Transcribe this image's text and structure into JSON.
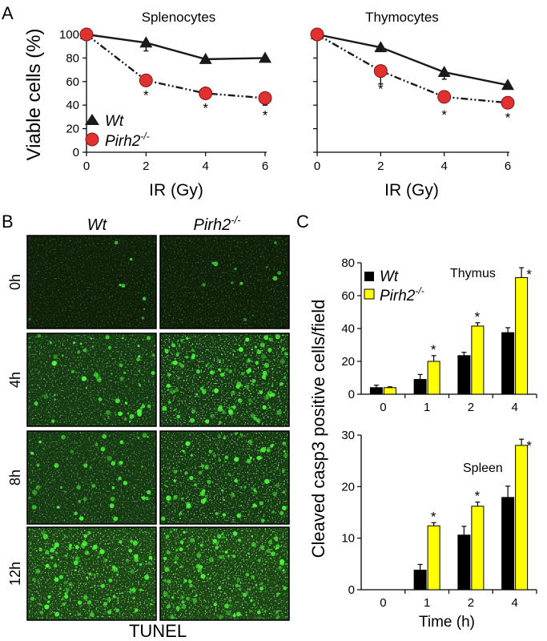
{
  "panel_letters": [
    "A",
    "B",
    "C"
  ],
  "panel_a": {
    "ylabel": "Viable cells (%)",
    "legend": {
      "wt": "Wt",
      "ko": "Pirh2",
      "ko_sup": "-/-"
    },
    "charts": [
      {
        "title": "Splenocytes",
        "xlabel": "IR (Gy)"
      },
      {
        "title": "Thymocytes",
        "xlabel": "IR (Gy)"
      }
    ]
  },
  "panel_b": {
    "col_labels": [
      "Wt",
      "Pirh2"
    ],
    "col_sup": "-/-",
    "row_labels": [
      "0h",
      "4h",
      "8h",
      "12h"
    ],
    "caption": "TUNEL"
  },
  "panel_c": {
    "ylabel": "Cleaved casp3 positive cells/field",
    "xlabel": "Time (h)",
    "legend": {
      "wt": "Wt",
      "ko": "Pirh2",
      "ko_sup": "-/-"
    },
    "charts": [
      {
        "title": "Thymus"
      },
      {
        "title": "Spleen"
      }
    ]
  },
  "chart_data": [
    {
      "type": "line",
      "title": "Splenocytes",
      "xlabel": "IR (Gy)",
      "ylabel": "Viable cells (%)",
      "x": [
        0,
        2,
        4,
        6
      ],
      "xlim": [
        0,
        6
      ],
      "ylim": [
        0,
        100
      ],
      "xticks": [
        "0",
        "2",
        "4",
        "6"
      ],
      "yticks": [
        "0",
        "20",
        "40",
        "60",
        "80",
        "100"
      ],
      "series": [
        {
          "name": "Wt",
          "values": [
            100,
            93,
            79,
            80
          ],
          "errors": [
            0,
            7,
            0,
            0
          ],
          "marker": "triangle",
          "color": "#1a1a1a",
          "style": "solid"
        },
        {
          "name": "Pirh2-/-",
          "values": [
            100,
            61,
            50,
            46
          ],
          "errors": [
            0,
            0,
            0,
            6
          ],
          "marker": "circle",
          "color": "#e03030",
          "style": "dashdot"
        }
      ],
      "annotations": [
        "*",
        "*",
        "*"
      ],
      "grid": false,
      "legend_position": "bottom-left"
    },
    {
      "type": "line",
      "title": "Thymocytes",
      "xlabel": "IR (Gy)",
      "x": [
        0,
        2,
        4,
        6
      ],
      "xlim": [
        0,
        6
      ],
      "ylim": [
        0,
        100
      ],
      "xticks": [
        "0",
        "2",
        "4",
        "6"
      ],
      "series": [
        {
          "name": "Wt",
          "values": [
            100,
            89,
            68,
            57
          ],
          "errors": [
            0,
            0,
            6,
            0
          ],
          "marker": "triangle",
          "color": "#1a1a1a",
          "style": "solid"
        },
        {
          "name": "Pirh2-/-",
          "values": [
            100,
            69,
            47,
            42
          ],
          "errors": [
            0,
            11,
            0,
            0
          ],
          "marker": "circle",
          "color": "#e03030",
          "style": "dashdot"
        }
      ],
      "annotations": [
        "*",
        "*",
        "*"
      ],
      "grid": false
    },
    {
      "type": "bar",
      "title": "Thymus",
      "xlabel": "",
      "ylabel": "Cleaved casp3 positive cells/field",
      "categories": [
        "0",
        "1",
        "2",
        "4"
      ],
      "ylim": [
        0,
        80
      ],
      "yticks": [
        "0",
        "20",
        "40",
        "60",
        "80"
      ],
      "series": [
        {
          "name": "Wt",
          "values": [
            4,
            9,
            23.5,
            37.5
          ],
          "errors": [
            1.5,
            3,
            2,
            3
          ],
          "color": "#000000"
        },
        {
          "name": "Pirh2-/-",
          "values": [
            4,
            20,
            41.5,
            71
          ],
          "errors": [
            0.5,
            3.5,
            2,
            6
          ],
          "color": "#ffff00"
        }
      ],
      "annotations": [
        "*",
        "*",
        "*"
      ],
      "grid": false,
      "legend_position": "top-left"
    },
    {
      "type": "bar",
      "title": "Spleen",
      "xlabel": "Time (h)",
      "categories": [
        "0",
        "1",
        "2",
        "4"
      ],
      "ylim": [
        0,
        30
      ],
      "yticks": [
        "0",
        "10",
        "20",
        "30"
      ],
      "series": [
        {
          "name": "Wt",
          "values": [
            0,
            3.8,
            10.6,
            17.9
          ],
          "errors": [
            0,
            1.1,
            1.7,
            2.2
          ],
          "color": "#000000"
        },
        {
          "name": "Pirh2-/-",
          "values": [
            0,
            12.4,
            16.2,
            28
          ],
          "errors": [
            0,
            0.6,
            0.8,
            1.2
          ],
          "color": "#ffff00"
        }
      ],
      "annotations": [
        "*",
        "*",
        "*"
      ],
      "grid": false
    }
  ]
}
